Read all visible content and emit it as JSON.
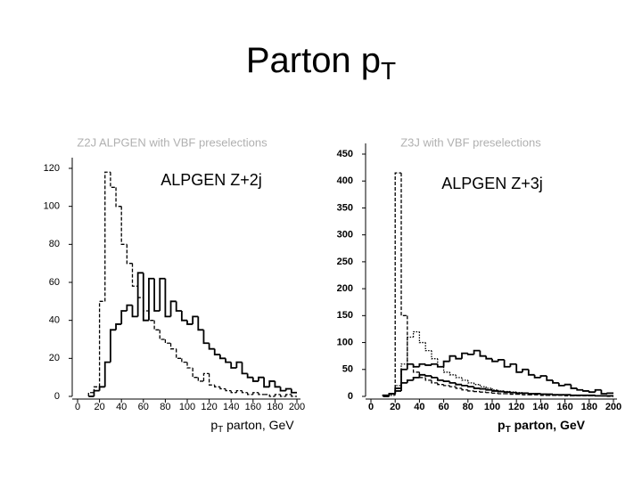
{
  "title": {
    "text": "Parton p",
    "subscript": "T"
  },
  "chart_data": [
    {
      "type": "histogram",
      "title": "Z2J ALPGEN with VBF preselections",
      "annotation": "ALPGEN Z+2j",
      "xlabel": {
        "text": "p",
        "subscript": "T",
        "rest": " parton, GeV"
      },
      "bins": [
        10,
        15,
        20,
        25,
        30,
        35,
        40,
        45,
        50,
        55,
        60,
        65,
        70,
        75,
        80,
        85,
        90,
        95,
        100,
        105,
        110,
        115,
        120,
        125,
        130,
        135,
        140,
        145,
        150,
        155,
        160,
        165,
        170,
        175,
        180,
        185,
        190,
        195,
        200
      ],
      "series": [
        {
          "color": "#000000",
          "style": "dashed",
          "values": [
            2,
            5,
            50,
            118,
            110,
            100,
            80,
            70,
            58,
            52,
            45,
            40,
            35,
            30,
            28,
            25,
            20,
            18,
            15,
            10,
            8,
            12,
            6,
            5,
            4,
            3,
            2,
            3,
            2,
            1,
            2,
            1,
            1,
            0,
            1,
            0,
            1,
            0
          ]
        },
        {
          "color": "#000000",
          "style": "solid",
          "values": [
            0,
            3,
            5,
            18,
            35,
            38,
            45,
            48,
            42,
            65,
            40,
            62,
            45,
            62,
            42,
            50,
            45,
            40,
            38,
            42,
            35,
            28,
            25,
            22,
            20,
            18,
            15,
            18,
            12,
            10,
            8,
            10,
            5,
            8,
            5,
            3,
            4,
            2
          ]
        }
      ],
      "xlim": [
        0,
        200
      ],
      "xticks": [
        0,
        20,
        40,
        60,
        80,
        100,
        120,
        140,
        160,
        180,
        200
      ],
      "ylim": [
        0,
        120
      ],
      "yticks": [
        0,
        20,
        40,
        60,
        80,
        100,
        120
      ],
      "bold_ticks": false
    },
    {
      "type": "histogram",
      "title": "Z3J with VBF preselections",
      "annotation": "ALPGEN Z+3j",
      "xlabel": {
        "text": "p",
        "subscript": "T",
        "rest": " parton, GeV"
      },
      "bins": [
        10,
        15,
        20,
        25,
        30,
        35,
        40,
        45,
        50,
        55,
        60,
        65,
        70,
        75,
        80,
        85,
        90,
        95,
        100,
        105,
        110,
        115,
        120,
        125,
        130,
        135,
        140,
        145,
        150,
        155,
        160,
        165,
        170,
        175,
        180,
        185,
        190,
        195,
        200
      ],
      "series": [
        {
          "color": "#000000",
          "style": "dashed",
          "values": [
            2,
            5,
            415,
            150,
            60,
            45,
            35,
            30,
            25,
            22,
            20,
            18,
            15,
            12,
            10,
            9,
            8,
            7,
            6,
            5,
            5,
            4,
            4,
            3,
            3,
            3,
            2,
            2,
            2,
            2,
            1,
            1,
            1,
            1,
            1,
            1,
            1,
            0
          ]
        },
        {
          "color": "#000000",
          "style": "dotted",
          "values": [
            0,
            2,
            20,
            60,
            110,
            120,
            100,
            85,
            70,
            55,
            45,
            40,
            35,
            30,
            25,
            22,
            18,
            15,
            12,
            10,
            9,
            8,
            7,
            6,
            5,
            5,
            4,
            4,
            3,
            3,
            2,
            2,
            2,
            1,
            1,
            1,
            1,
            1
          ]
        },
        {
          "color": "#000000",
          "style": "solid",
          "values": [
            0,
            5,
            15,
            50,
            60,
            55,
            60,
            58,
            60,
            55,
            65,
            75,
            70,
            80,
            78,
            85,
            75,
            70,
            65,
            68,
            55,
            60,
            45,
            50,
            40,
            35,
            38,
            30,
            25,
            20,
            22,
            15,
            12,
            10,
            8,
            12,
            5,
            6
          ]
        },
        {
          "color": "#000000",
          "style": "solid",
          "values": [
            2,
            5,
            10,
            25,
            30,
            35,
            40,
            38,
            35,
            30,
            28,
            25,
            22,
            20,
            18,
            15,
            14,
            12,
            10,
            9,
            8,
            7,
            6,
            6,
            5,
            5,
            4,
            4,
            3,
            3,
            3,
            2,
            2,
            2,
            2,
            1,
            1,
            1
          ]
        }
      ],
      "xlim": [
        0,
        200
      ],
      "xticks": [
        0,
        20,
        40,
        60,
        80,
        100,
        120,
        140,
        160,
        180,
        200
      ],
      "ylim": [
        0,
        450
      ],
      "yticks": [
        0,
        50,
        100,
        150,
        200,
        250,
        300,
        350,
        400,
        450
      ],
      "bold_ticks": true
    }
  ]
}
